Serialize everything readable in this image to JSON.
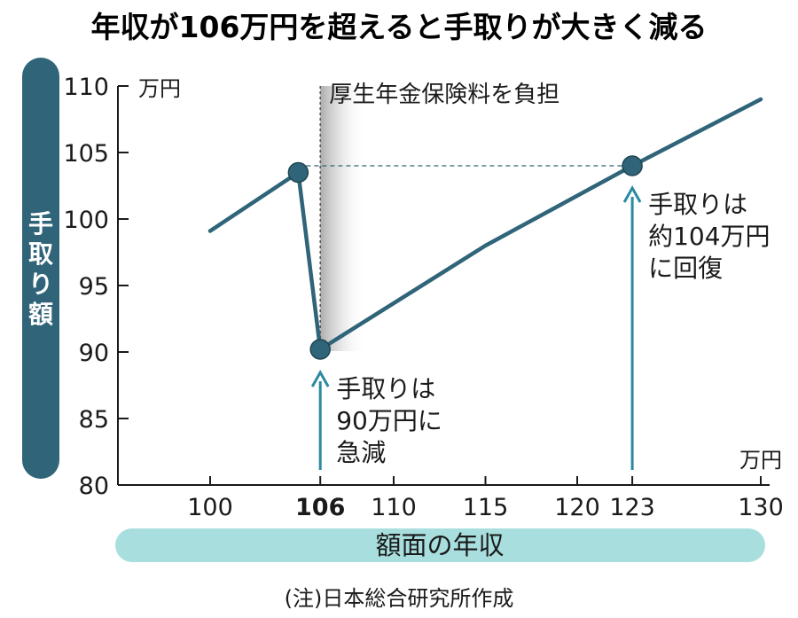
{
  "chart_data": {
    "type": "line",
    "title": "年収が106万円を超えると手取りが大きく減る",
    "ylabel": "手取り額",
    "xlabel": "額面の年収",
    "y_unit": "万円",
    "x_unit": "万円",
    "ylim": [
      80,
      110
    ],
    "xlim": [
      100,
      130
    ],
    "y_ticks": [
      "110",
      "105",
      "100",
      "95",
      "90",
      "85",
      "80"
    ],
    "x_ticks": [
      "100",
      "106",
      "110",
      "115",
      "120",
      "123",
      "130"
    ],
    "bold_x_tick": "106",
    "grid": false,
    "series": [
      {
        "x": [
          100,
          104.8,
          106,
          115,
          123,
          130
        ],
        "y": [
          99.1,
          103.5,
          90.2,
          98.0,
          104.0,
          109.0
        ]
      }
    ],
    "markers": [
      {
        "x": 104.8,
        "y": 103.5
      },
      {
        "x": 106,
        "y": 90.2
      },
      {
        "x": 123,
        "y": 104.0
      }
    ],
    "shaded_region": {
      "x_start": 106,
      "x_end": 108.5,
      "label": "厚生年金保険料を負担"
    },
    "reference_line": {
      "y": 104.0,
      "x_start": 104.8,
      "x_end": 123
    },
    "annotations": [
      {
        "x": 106,
        "lines": [
          "手取りは",
          "90万円に",
          "急減"
        ]
      },
      {
        "x": 123,
        "lines": [
          "手取りは",
          "約104万円",
          "に回復"
        ]
      }
    ],
    "note": "(注)日本総合研究所作成"
  },
  "colors": {
    "line": "#2f6479",
    "marker": "#2f6479",
    "arrow": "#2a8aa0",
    "ylabel_bg": "#2f6479",
    "xlabel_bg": "#a9dede",
    "shade": "#b8b8b8"
  }
}
